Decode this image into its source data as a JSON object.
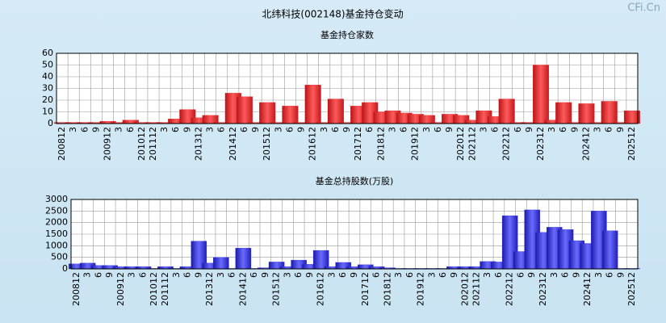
{
  "header": {
    "title": "北纬科技(002148)基金持仓变动",
    "watermark": "CFi.Cn"
  },
  "chart_data": [
    {
      "type": "bar",
      "title": "基金持仓家数",
      "color": "#e8262a",
      "categories": [
        "200812",
        "3",
        "6",
        "9",
        "200912",
        "3",
        "6",
        "201012",
        "201112",
        "3",
        "6",
        "9",
        "201312",
        "3",
        "6",
        "201412",
        "6",
        "9",
        "201512",
        "3",
        "6",
        "9",
        "201612",
        "3",
        "6",
        "9",
        "201712",
        "6",
        "201812",
        "3",
        "6",
        "201912",
        "3",
        "6",
        "9",
        "202012",
        "202112",
        "3",
        "6",
        "202212",
        "6",
        "9",
        "202312",
        "3",
        "6",
        "9",
        "202412",
        "3",
        "6",
        "9",
        "202512"
      ],
      "values": [
        1,
        1,
        1,
        1,
        2,
        1,
        3,
        1,
        1,
        1,
        4,
        12,
        5,
        7,
        1,
        26,
        23,
        1,
        18,
        1,
        15,
        1,
        33,
        1,
        21,
        1,
        15,
        18,
        10,
        11,
        9,
        8,
        7,
        1,
        8,
        7,
        3,
        11,
        6,
        21,
        1,
        1,
        50,
        3,
        18,
        1,
        17,
        1,
        19,
        1,
        11
      ],
      "ylim": [
        0,
        60
      ],
      "yticks": [
        0,
        10,
        20,
        30,
        40,
        50,
        60
      ],
      "grid": true
    },
    {
      "type": "bar",
      "title": "基金总持股数(万股)",
      "color": "#2a2ae0",
      "categories": [
        "200812",
        "3",
        "6",
        "9",
        "200912",
        "3",
        "6",
        "201012",
        "201112",
        "3",
        "6",
        "9",
        "201312",
        "3",
        "6",
        "201412",
        "6",
        "9",
        "201512",
        "3",
        "6",
        "9",
        "201612",
        "3",
        "6",
        "9",
        "201712",
        "6",
        "201812",
        "3",
        "6",
        "201912",
        "3",
        "6",
        "9",
        "202012",
        "202112",
        "3",
        "6",
        "202212",
        "6",
        "9",
        "202312",
        "3",
        "6",
        "9",
        "202412",
        "3",
        "6",
        "9",
        "202512"
      ],
      "values": [
        220,
        250,
        150,
        150,
        100,
        100,
        100,
        20,
        100,
        20,
        100,
        1200,
        250,
        500,
        20,
        900,
        20,
        50,
        300,
        100,
        380,
        200,
        800,
        100,
        280,
        100,
        180,
        100,
        50,
        20,
        20,
        20,
        20,
        20,
        100,
        100,
        100,
        320,
        300,
        2300,
        750,
        2550,
        1580,
        1800,
        1700,
        1220,
        1100,
        2500,
        1650,
        20,
        20
      ],
      "ylim": [
        0,
        3000
      ],
      "yticks": [
        0,
        500,
        1000,
        1500,
        2000,
        2500,
        3000
      ],
      "grid": true
    }
  ]
}
